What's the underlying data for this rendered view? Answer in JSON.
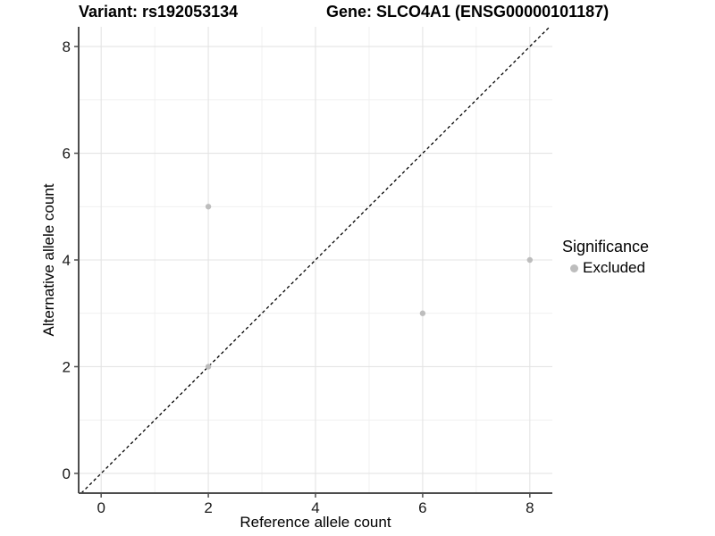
{
  "header": {
    "variant_title": "Variant: rs192053134",
    "gene_title": "Gene: SLCO4A1 (ENSG00000101187)"
  },
  "chart_data": {
    "type": "scatter",
    "xlabel": "Reference allele count",
    "ylabel": "Alternative allele count",
    "xlim": [
      -0.42,
      8.42
    ],
    "ylim": [
      -0.37,
      8.37
    ],
    "x_ticks": [
      0,
      2,
      4,
      6,
      8
    ],
    "y_ticks": [
      0,
      2,
      4,
      6,
      8
    ],
    "x_minor_ticks": [
      1,
      3,
      5,
      7
    ],
    "y_minor_ticks": [
      1,
      3,
      5,
      7
    ],
    "grid": "major+minor",
    "identity_line": {
      "slope": 1,
      "intercept": 0,
      "style": "dashed",
      "color": "#000000"
    },
    "series": [
      {
        "name": "Excluded",
        "color": "#bdbdbd",
        "points": [
          [
            2,
            5
          ],
          [
            2,
            2
          ],
          [
            6,
            3
          ],
          [
            8,
            4
          ]
        ]
      }
    ],
    "legend": {
      "title": "Significance",
      "position": "right",
      "items": [
        {
          "label": "Excluded",
          "color": "#bdbdbd"
        }
      ]
    }
  },
  "colors": {
    "background": "#ffffff",
    "grid_major": "#e4e4e4",
    "grid_minor": "#efefef",
    "axis": "#4d4d4d",
    "tick_label": "#1a1a1a",
    "point": "#bdbdbd"
  }
}
